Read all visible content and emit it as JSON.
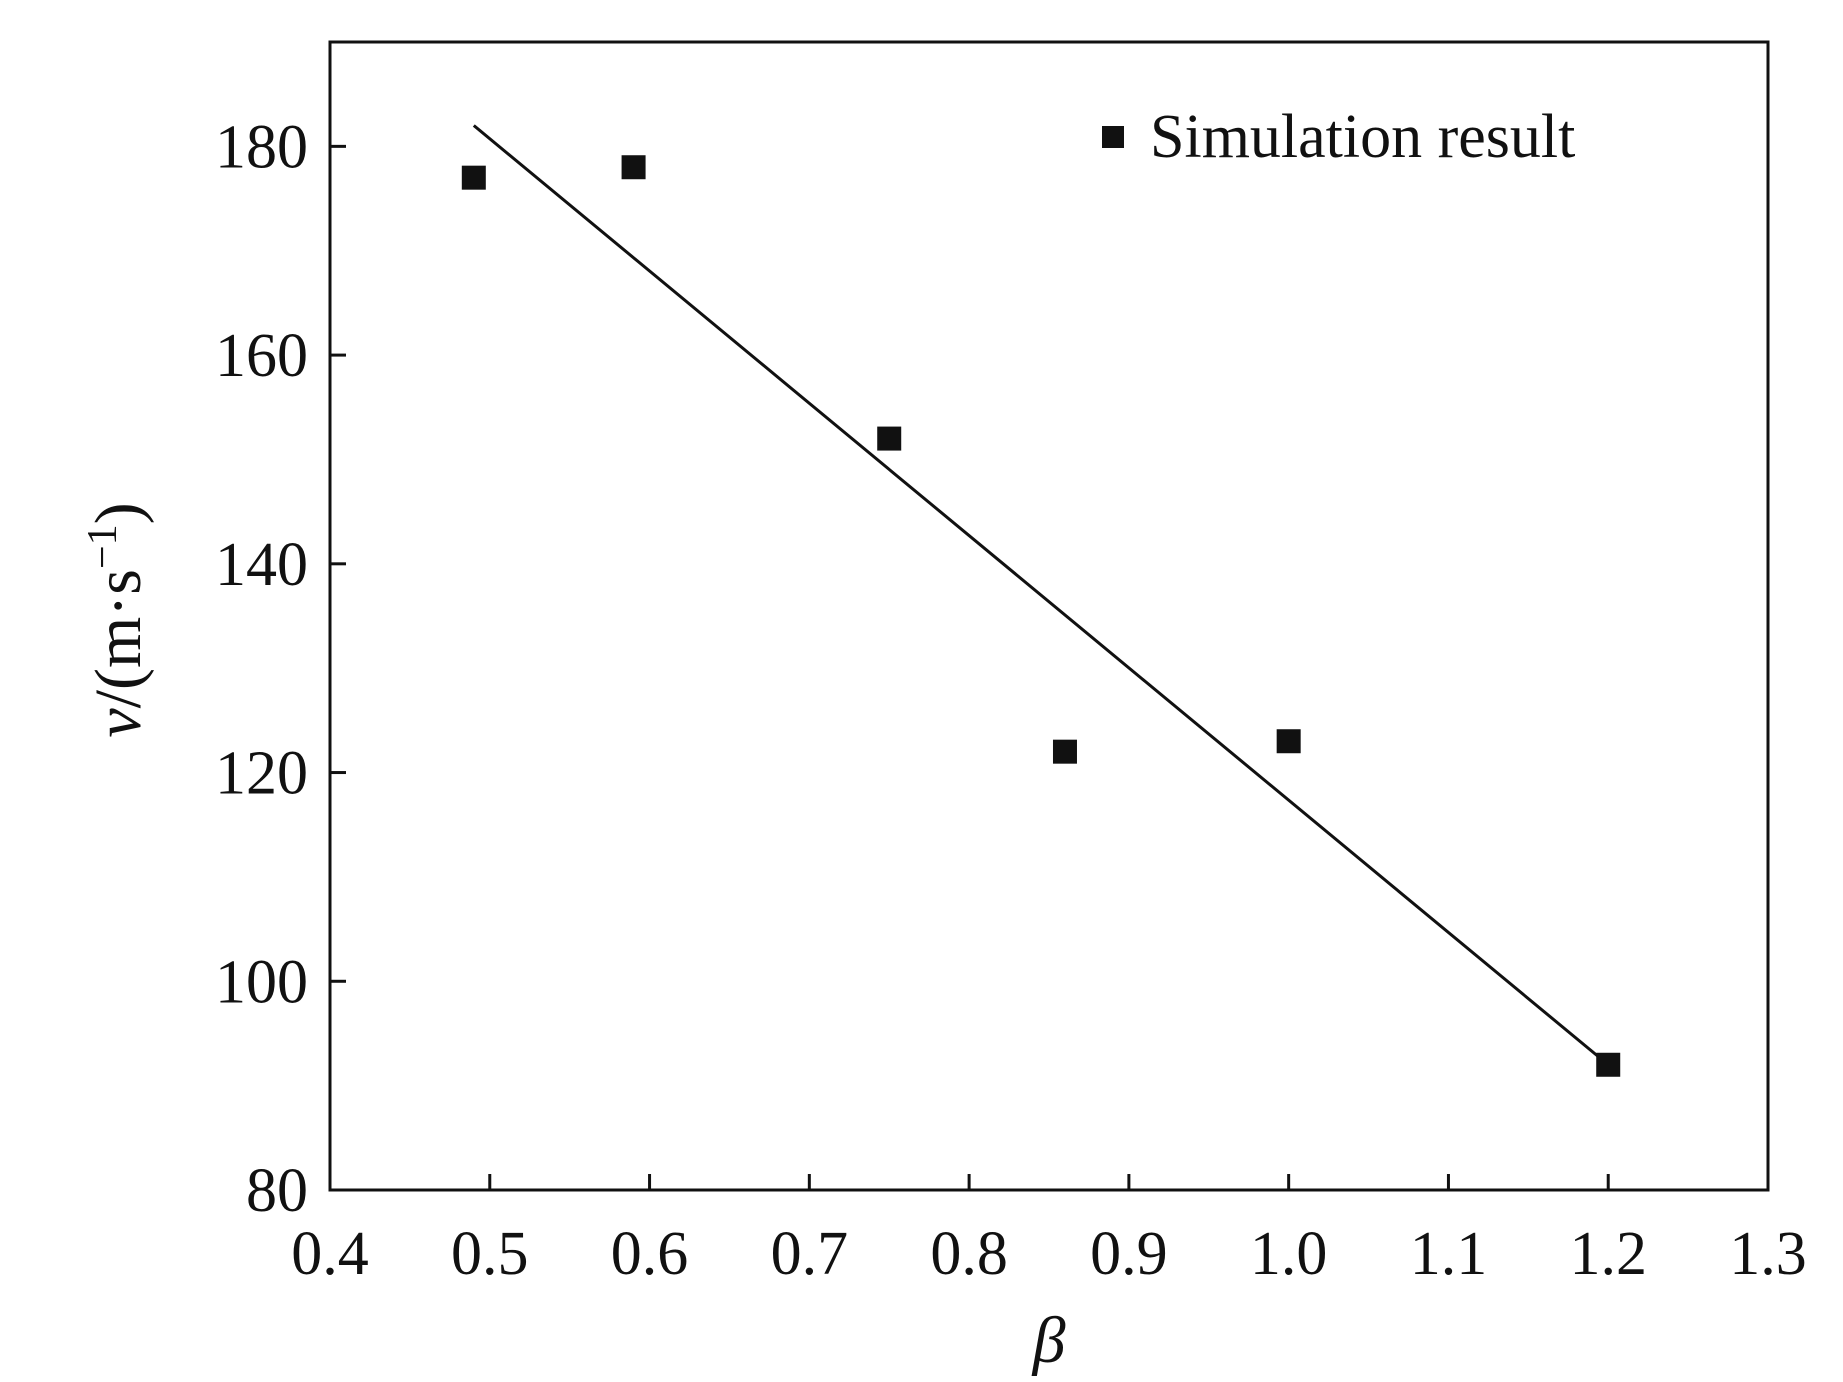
{
  "colors": {
    "axis": "#111111",
    "marker": "#111111",
    "fit_line": "#111111",
    "background": "#ffffff"
  },
  "chart_data": {
    "type": "scatter",
    "title": "",
    "xlabel": "β",
    "ylabel": "v/(m·s−1)",
    "ylabel_parts": {
      "main": "v",
      "unit_open": "/(m·s",
      "sup": "−1",
      "unit_close": ")"
    },
    "xlim": [
      0.4,
      1.3
    ],
    "ylim": [
      80,
      190
    ],
    "xticks": [
      0.4,
      0.5,
      0.6,
      0.7,
      0.8,
      0.9,
      1.0,
      1.1,
      1.2,
      1.3
    ],
    "xtick_labels": [
      "0.4",
      "0.5",
      "0.6",
      "0.7",
      "0.8",
      "0.9",
      "1.0",
      "1.1",
      "1.2",
      "1.3"
    ],
    "yticks": [
      80,
      100,
      120,
      140,
      160,
      180
    ],
    "ytick_labels": [
      "80",
      "100",
      "120",
      "140",
      "160",
      "180"
    ],
    "grid": false,
    "legend_position": "top-right",
    "series": [
      {
        "name": "Simulation result",
        "marker": "square",
        "x": [
          0.49,
          0.59,
          0.75,
          0.86,
          1.0,
          1.2
        ],
        "y": [
          177,
          178,
          152,
          122,
          123,
          92
        ]
      }
    ],
    "fit_line": {
      "x": [
        0.49,
        1.2
      ],
      "y": [
        182,
        92
      ]
    }
  }
}
